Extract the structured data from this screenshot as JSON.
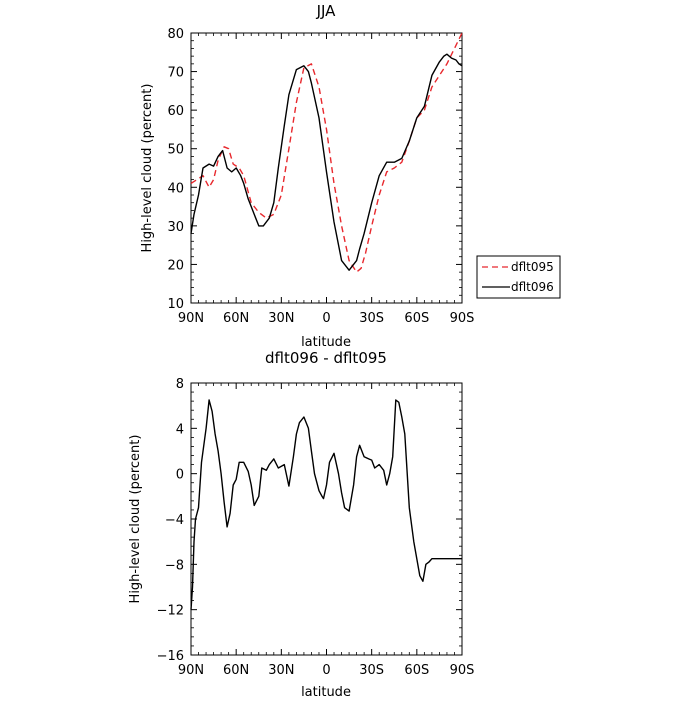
{
  "chart_data": [
    {
      "type": "line",
      "title": "JJA",
      "xlabel": "latitude",
      "ylabel": "High-level cloud (percent)",
      "xlim": [
        90,
        -90
      ],
      "ylim": [
        10,
        80
      ],
      "xticks": [
        90,
        60,
        30,
        0,
        -30,
        -60,
        -90
      ],
      "xtick_labels": [
        "90N",
        "60N",
        "30N",
        "0",
        "30S",
        "60S",
        "90S"
      ],
      "yticks": [
        10,
        20,
        30,
        40,
        50,
        60,
        70,
        80
      ],
      "ytick_labels": [
        "10",
        "20",
        "30",
        "40",
        "50",
        "60",
        "70",
        "80"
      ],
      "legend_position": "right",
      "series": [
        {
          "name": "dflt095",
          "color": "#e8282d",
          "dash": "dashed",
          "x": [
            90,
            86,
            82,
            78,
            75,
            72,
            68,
            65,
            62,
            58,
            55,
            50,
            45,
            40,
            35,
            30,
            25,
            20,
            15,
            10,
            5,
            0,
            -5,
            -10,
            -15,
            -20,
            -23,
            -26,
            -30,
            -35,
            -40,
            -45,
            -50,
            -55,
            -60,
            -65,
            -70,
            -75,
            -80,
            -85,
            -90
          ],
          "y": [
            41,
            42,
            43,
            40,
            42,
            47,
            50.5,
            50,
            46,
            45,
            43,
            36,
            33.5,
            32,
            33,
            38,
            50,
            62,
            71,
            72,
            66,
            55,
            41,
            30,
            21,
            18,
            19,
            23,
            30,
            38,
            44,
            45,
            46.5,
            52,
            58,
            60,
            66,
            69,
            72,
            76,
            80
          ]
        },
        {
          "name": "dflt096",
          "color": "#000000",
          "dash": "solid",
          "x": [
            90,
            88,
            85,
            82,
            78,
            75,
            72,
            69,
            66,
            63,
            60,
            57,
            55,
            52,
            48,
            45,
            42,
            38,
            35,
            32,
            28,
            25,
            20,
            15,
            12,
            10,
            5,
            0,
            -5,
            -10,
            -15,
            -20,
            -22,
            -25,
            -30,
            -35,
            -40,
            -45,
            -50,
            -55,
            -60,
            -65,
            -70,
            -75,
            -78,
            -80,
            -83,
            -86,
            -88,
            -90
          ],
          "y": [
            28,
            33,
            38,
            45,
            46,
            45.5,
            48,
            49.5,
            45,
            44,
            45,
            43,
            41,
            37,
            33,
            30,
            30,
            32,
            36,
            45,
            56,
            64,
            70.5,
            71.5,
            70,
            67,
            58,
            44,
            31,
            21,
            18.5,
            21,
            24,
            28,
            36,
            43,
            46.5,
            46.5,
            47.5,
            52,
            58,
            61,
            69,
            72.5,
            74,
            74.5,
            73.5,
            73,
            72,
            71.5
          ]
        }
      ]
    },
    {
      "type": "line",
      "title": "dflt096 - dflt095",
      "xlabel": "latitude",
      "ylabel": "High-level cloud (percent)",
      "xlim": [
        90,
        -90
      ],
      "ylim": [
        -16,
        8
      ],
      "xticks": [
        90,
        60,
        30,
        0,
        -30,
        -60,
        -90
      ],
      "xtick_labels": [
        "90N",
        "60N",
        "30N",
        "0",
        "30S",
        "60S",
        "90S"
      ],
      "yticks": [
        -16,
        -12,
        -8,
        -4,
        0,
        4,
        8
      ],
      "ytick_labels": [
        "−16",
        "−12",
        "−8",
        "−4",
        "0",
        "4",
        "8"
      ],
      "series": [
        {
          "color": "#000000",
          "dash": "solid",
          "x": [
            90,
            89,
            88,
            87,
            85,
            83,
            80,
            78,
            76,
            74,
            72,
            70,
            68,
            66,
            64,
            62,
            60,
            58,
            55,
            52,
            50,
            48,
            45,
            43,
            40,
            38,
            35,
            32,
            28,
            25,
            22,
            20,
            18,
            15,
            12,
            10,
            8,
            5,
            3,
            2,
            0,
            -2,
            -5,
            -8,
            -10,
            -12,
            -15,
            -18,
            -20,
            -22,
            -25,
            -28,
            -30,
            -32,
            -35,
            -38,
            -40,
            -42,
            -44,
            -46,
            -48,
            -50,
            -52,
            -55,
            -58,
            -60,
            -62,
            -64,
            -66,
            -68,
            -70,
            -72,
            -74,
            -76,
            -78,
            -80,
            -82,
            -84,
            -86,
            -88,
            -90
          ],
          "y": [
            -12,
            -10,
            -6,
            -4,
            -3,
            1,
            4,
            6.5,
            5.5,
            3.5,
            2,
            0,
            -2.5,
            -4.7,
            -3.5,
            -1,
            -0.5,
            1,
            1,
            0.2,
            -1,
            -2.8,
            -2,
            0.5,
            0.3,
            0.8,
            1.3,
            0.5,
            0.8,
            -1.1,
            1.5,
            3.5,
            4.5,
            5,
            4,
            2,
            0,
            -1.5,
            -2,
            -2.2,
            -1,
            1,
            1.8,
            0,
            -1.7,
            -3,
            -3.3,
            -1,
            1.5,
            2.5,
            1.5,
            1.3,
            1.2,
            0.5,
            0.8,
            0.3,
            -1,
            0,
            1.5,
            6.5,
            6.3,
            5,
            3.5,
            -3,
            -6,
            -7.5,
            -9,
            -9.5,
            -8,
            -7.8,
            -7.5,
            -7.5,
            -7.5,
            -7.5,
            -7.5,
            -7.5,
            -7.5,
            -7.5,
            -7.5,
            -7.5,
            -7.5
          ]
        }
      ]
    }
  ]
}
